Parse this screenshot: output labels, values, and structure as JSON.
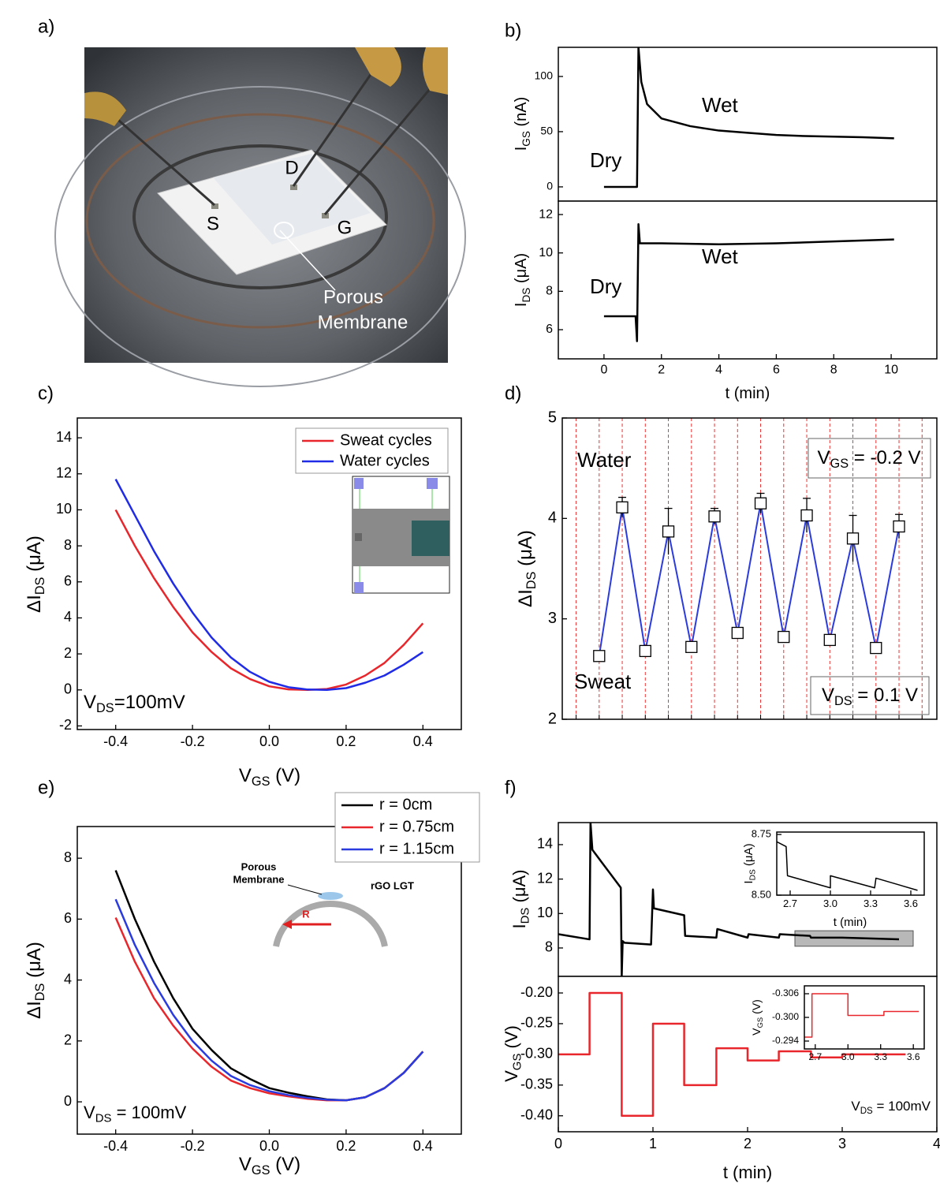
{
  "panel_labels": [
    "a)",
    "b)",
    "c)",
    "d)",
    "e)",
    "f)"
  ],
  "photo": {
    "labels": [
      "S",
      "D",
      "G"
    ],
    "caption": [
      "Porous",
      "Membrane"
    ]
  },
  "chart_data": [
    {
      "type": "line",
      "xlim": [
        -1.59,
        11.59
      ],
      "ylim": [
        -12.9,
        126.4
      ],
      "yticks": [
        0,
        50,
        100
      ],
      "ylabel": [
        "I",
        "GS",
        " (nA)"
      ],
      "annotations": [
        "Dry",
        "Wet"
      ],
      "series": [
        {
          "color": "#000000",
          "x": [
            0,
            1.15,
            1.2,
            1.3,
            1.5,
            2,
            3,
            4,
            5,
            6,
            7,
            8,
            9,
            10.1
          ],
          "values": [
            0,
            0,
            126.4,
            95,
            75,
            62,
            55,
            51,
            49,
            47,
            46,
            45.5,
            45,
            44
          ]
        }
      ]
    },
    {
      "type": "line",
      "xlim": [
        -1.59,
        11.59
      ],
      "ylim": [
        4.48,
        12.7
      ],
      "yticks": [
        6,
        8,
        10,
        12
      ],
      "xticks": [
        0,
        2,
        4,
        6,
        8,
        10
      ],
      "xlabel": "t (min)",
      "ylabel": [
        "I",
        "DS",
        " (μA)"
      ],
      "annotations": [
        "Dry",
        "Wet"
      ],
      "series": [
        {
          "color": "#000000",
          "x": [
            0,
            1.1,
            1.15,
            1.2,
            1.25,
            1.4,
            2,
            4,
            6,
            8,
            10.1
          ],
          "values": [
            6.7,
            6.7,
            5.4,
            11.5,
            10.5,
            10.5,
            10.5,
            10.45,
            10.5,
            10.6,
            10.7
          ]
        }
      ]
    },
    {
      "type": "line",
      "xlim": [
        -0.5,
        0.5
      ],
      "ylim": [
        -2.2,
        15.1
      ],
      "xticks": [
        -0.4,
        -0.2,
        {
          "value": 0,
          "label": "0.0"
        },
        0.2,
        0.4
      ],
      "yticks": [
        -2,
        0,
        2,
        4,
        6,
        8,
        10,
        12,
        14
      ],
      "xlabel": [
        "V",
        "GS",
        " (V)"
      ],
      "ylabel": [
        "ΔI",
        "DS",
        " (μA)"
      ],
      "annotations": [
        [
          "V",
          "DS",
          "=100mV"
        ]
      ],
      "series": [
        {
          "name": "Sweat cycles",
          "color": "#e8262b",
          "x": [
            -0.4,
            -0.35,
            -0.3,
            -0.25,
            -0.2,
            -0.15,
            -0.1,
            -0.05,
            0,
            0.05,
            0.1,
            0.15,
            0.2,
            0.25,
            0.3,
            0.35,
            0.4
          ],
          "values": [
            10.0,
            8.0,
            6.2,
            4.6,
            3.2,
            2.1,
            1.2,
            0.6,
            0.2,
            0.03,
            0.0,
            0.05,
            0.3,
            0.8,
            1.5,
            2.5,
            3.7
          ]
        },
        {
          "name": "Water cycles",
          "color": "#1f2be6",
          "x": [
            -0.4,
            -0.35,
            -0.3,
            -0.25,
            -0.2,
            -0.15,
            -0.1,
            -0.05,
            0,
            0.05,
            0.1,
            0.15,
            0.2,
            0.25,
            0.3,
            0.35,
            0.4
          ],
          "values": [
            11.7,
            9.7,
            7.7,
            5.9,
            4.3,
            2.9,
            1.8,
            1.0,
            0.45,
            0.15,
            0.02,
            0.0,
            0.1,
            0.4,
            0.8,
            1.4,
            2.1
          ]
        }
      ]
    },
    {
      "type": "line",
      "xlim": [
        -1.6,
        14.64
      ],
      "ylim": [
        2,
        5
      ],
      "yticks": [
        2,
        3,
        4,
        5
      ],
      "ylabel": [
        "ΔI",
        "DS",
        " (μA)"
      ],
      "annotations": [
        "Water",
        "Sweat",
        [
          "V",
          "GS",
          " = -0.2 V"
        ],
        [
          "V",
          "DS",
          " = 0.1 V"
        ]
      ],
      "categories": [
        null,
        null,
        null,
        null,
        null,
        null,
        null,
        null,
        null,
        null,
        null,
        null,
        null,
        null
      ],
      "series": [
        {
          "color": "#2a3be0",
          "values": [
            2.63,
            4.11,
            2.68,
            3.87,
            2.72,
            4.02,
            2.86,
            4.15,
            2.82,
            4.03,
            2.79,
            3.8,
            2.71,
            3.92
          ],
          "errors": [
            0.05,
            0.1,
            0.03,
            0.23,
            0.03,
            0.08,
            0.03,
            0.1,
            0.04,
            0.17,
            0.04,
            0.23,
            0.03,
            0.12
          ]
        }
      ]
    },
    {
      "type": "line",
      "xlim": [
        -0.5,
        0.5
      ],
      "ylim": [
        -1.06,
        9.04
      ],
      "xticks": [
        -0.4,
        -0.2,
        {
          "value": 0,
          "label": "0.0"
        },
        0.2,
        0.4
      ],
      "yticks": [
        0,
        2,
        4,
        6,
        8
      ],
      "xlabel": [
        "V",
        "GS",
        " (V)"
      ],
      "ylabel": [
        "ΔI",
        "DS",
        " (μA)"
      ],
      "annotations": [
        [
          "V",
          "DS",
          " = 100mV"
        ]
      ],
      "inset_labels": {
        "membrane": [
          "Porous",
          "Membrane"
        ],
        "device": "rGO LGT",
        "radius": "R"
      },
      "series": [
        {
          "name": "r = 0cm",
          "color": "#000000",
          "x": [
            -0.4,
            -0.35,
            -0.3,
            -0.25,
            -0.2,
            -0.15,
            -0.1,
            -0.05,
            0,
            0.05,
            0.1,
            0.15,
            0.2,
            0.25,
            0.3,
            0.35,
            0.4
          ],
          "values": [
            7.6,
            6.0,
            4.6,
            3.4,
            2.4,
            1.7,
            1.1,
            0.75,
            0.45,
            0.3,
            0.18,
            0.08,
            0.05,
            0.15,
            0.45,
            0.95,
            1.65
          ]
        },
        {
          "name": "r = 0.75cm",
          "color": "#e8262b",
          "x": [
            -0.4,
            -0.35,
            -0.3,
            -0.25,
            -0.2,
            -0.15,
            -0.1,
            -0.05,
            0,
            0.05,
            0.1,
            0.15,
            0.2,
            0.25,
            0.3,
            0.35,
            0.4
          ],
          "values": [
            6.05,
            4.6,
            3.4,
            2.5,
            1.75,
            1.15,
            0.7,
            0.45,
            0.28,
            0.18,
            0.1,
            0.05,
            0.05,
            0.15,
            0.45,
            0.95,
            1.65
          ]
        },
        {
          "name": "r = 1.15cm",
          "color": "#2a3be0",
          "x": [
            -0.4,
            -0.35,
            -0.3,
            -0.25,
            -0.2,
            -0.15,
            -0.1,
            -0.05,
            0,
            0.05,
            0.1,
            0.15,
            0.2,
            0.25,
            0.3,
            0.35,
            0.4
          ],
          "values": [
            6.65,
            5.15,
            3.9,
            2.85,
            2.0,
            1.35,
            0.85,
            0.55,
            0.35,
            0.22,
            0.13,
            0.07,
            0.05,
            0.15,
            0.45,
            0.95,
            1.65
          ]
        }
      ]
    },
    {
      "type": "line",
      "xlim": [
        0,
        4
      ],
      "ylim": [
        6.35,
        15.28
      ],
      "yticks": [
        8,
        10,
        12,
        14
      ],
      "ylabel": [
        "I",
        "DS",
        " (μA)"
      ],
      "highlight": {
        "x": [
          2.5,
          3.75
        ],
        "y": [
          8.1,
          9.0
        ]
      },
      "series": [
        {
          "color": "#000000",
          "x": [
            0,
            0.33,
            0.34,
            0.36,
            0.66,
            0.67,
            0.68,
            0.7,
            0.98,
            1.0,
            1.01,
            1.33,
            1.34,
            1.67,
            1.68,
            2.0,
            2.01,
            2.33,
            2.34,
            2.66,
            2.67,
            3.0,
            3.6
          ],
          "values": [
            8.8,
            8.5,
            15.28,
            13.7,
            11.5,
            6.35,
            8.4,
            8.3,
            8.2,
            11.4,
            10.3,
            9.9,
            8.7,
            8.6,
            9.1,
            8.6,
            8.8,
            8.6,
            8.8,
            8.7,
            8.6,
            8.6,
            8.5
          ]
        }
      ]
    },
    {
      "type": "line",
      "xlim": [
        2.6,
        3.7
      ],
      "ylim": [
        8.5,
        8.76
      ],
      "xticks": [
        2.7,
        {
          "value": 3,
          "label": "3.0"
        },
        3.3,
        3.6
      ],
      "yticks": [
        {
          "value": 8.5,
          "label": "8.50"
        },
        8.75
      ],
      "xlabel": "t (min)",
      "ylabel": [
        "I",
        "DS",
        " (μA)"
      ],
      "series": [
        {
          "color": "#000000",
          "x": [
            2.6,
            2.67,
            2.68,
            3.0,
            3.0,
            3.33,
            3.34,
            3.65
          ],
          "values": [
            8.72,
            8.7,
            8.58,
            8.53,
            8.58,
            8.53,
            8.57,
            8.52
          ]
        }
      ]
    },
    {
      "type": "line",
      "xlim": [
        0,
        4
      ],
      "ylim": [
        -0.426,
        -0.173
      ],
      "xticks": [
        0,
        1,
        2,
        3,
        4
      ],
      "yticks": [
        {
          "value": -0.2,
          "label": "-0.20"
        },
        -0.25,
        {
          "value": -0.3,
          "label": "-0.30"
        },
        -0.35,
        {
          "value": -0.4,
          "label": "-0.40"
        }
      ],
      "xlabel": "t (min)",
      "ylabel": [
        "V",
        "GS",
        " (V)"
      ],
      "annotations": [
        [
          "V",
          "DS",
          " = 100mV"
        ]
      ],
      "series": [
        {
          "color": "#e8262b",
          "x": [
            0,
            0.33,
            0.33,
            0.67,
            0.67,
            1.0,
            1.0,
            1.33,
            1.33,
            1.67,
            1.67,
            2.0,
            2.0,
            2.33,
            2.33,
            2.67,
            2.67,
            3.0,
            3.0,
            3.67
          ],
          "values": [
            -0.3,
            -0.3,
            -0.2,
            -0.2,
            -0.4,
            -0.4,
            -0.25,
            -0.25,
            -0.35,
            -0.35,
            -0.29,
            -0.29,
            -0.31,
            -0.31,
            -0.295,
            -0.295,
            -0.305,
            -0.305,
            -0.3,
            -0.3
          ]
        }
      ]
    },
    {
      "type": "line",
      "xlim": [
        2.6,
        3.7
      ],
      "ylim": [
        -0.292,
        -0.308
      ],
      "xticks": [
        2.7,
        {
          "value": 3,
          "label": "3.0"
        },
        3.3,
        3.6
      ],
      "yticks": [
        -0.306,
        {
          "value": -0.3,
          "label": "-0.300"
        },
        -0.294
      ],
      "ylabel": [
        "V",
        "GS",
        " (V)"
      ],
      "series": [
        {
          "color": "#e8262b",
          "x": [
            2.6,
            2.67,
            2.67,
            3.0,
            3.0,
            3.33,
            3.33,
            3.65
          ],
          "values": [
            -0.295,
            -0.295,
            -0.306,
            -0.306,
            -0.3005,
            -0.3005,
            -0.3015,
            -0.3015
          ]
        }
      ]
    }
  ]
}
